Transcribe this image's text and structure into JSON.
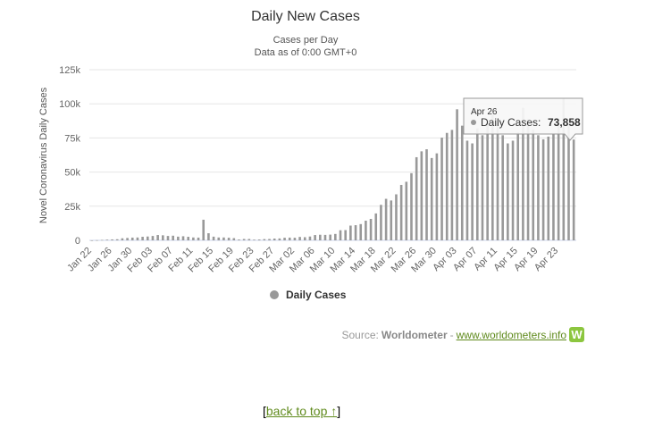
{
  "chart_data": {
    "type": "bar",
    "title": "Daily New Cases",
    "subtitle": [
      "Cases per Day",
      "Data as of 0:00 GMT+0"
    ],
    "ylabel": "Novel Coronavirus Daily Cases",
    "xlabel": "",
    "ylim": [
      0,
      125000
    ],
    "yticks": [
      0,
      25000,
      50000,
      75000,
      100000,
      125000
    ],
    "ytick_labels": [
      "0",
      "25k",
      "50k",
      "75k",
      "100k",
      "125k"
    ],
    "grid": true,
    "legend": {
      "position": "bottom-center",
      "entries": [
        "Daily Cases"
      ]
    },
    "series_color": "#999999",
    "categories": [
      "Jan 22",
      "Jan 23",
      "Jan 24",
      "Jan 25",
      "Jan 26",
      "Jan 27",
      "Jan 28",
      "Jan 29",
      "Jan 30",
      "Jan 31",
      "Feb 01",
      "Feb 02",
      "Feb 03",
      "Feb 04",
      "Feb 05",
      "Feb 06",
      "Feb 07",
      "Feb 08",
      "Feb 09",
      "Feb 10",
      "Feb 11",
      "Feb 12",
      "Feb 13",
      "Feb 14",
      "Feb 15",
      "Feb 16",
      "Feb 17",
      "Feb 18",
      "Feb 19",
      "Feb 20",
      "Feb 21",
      "Feb 22",
      "Feb 23",
      "Feb 24",
      "Feb 25",
      "Feb 26",
      "Feb 27",
      "Feb 28",
      "Feb 29",
      "Mar 01",
      "Mar 02",
      "Mar 03",
      "Mar 04",
      "Mar 05",
      "Mar 06",
      "Mar 07",
      "Mar 08",
      "Mar 09",
      "Mar 10",
      "Mar 11",
      "Mar 12",
      "Mar 13",
      "Mar 14",
      "Mar 15",
      "Mar 16",
      "Mar 17",
      "Mar 18",
      "Mar 19",
      "Mar 20",
      "Mar 21",
      "Mar 22",
      "Mar 23",
      "Mar 24",
      "Mar 25",
      "Mar 26",
      "Mar 27",
      "Mar 28",
      "Mar 29",
      "Mar 30",
      "Mar 31",
      "Apr 01",
      "Apr 02",
      "Apr 03",
      "Apr 04",
      "Apr 05",
      "Apr 06",
      "Apr 07",
      "Apr 08",
      "Apr 09",
      "Apr 10",
      "Apr 11",
      "Apr 12",
      "Apr 13",
      "Apr 14",
      "Apr 15",
      "Apr 16",
      "Apr 17",
      "Apr 18",
      "Apr 19",
      "Apr 20",
      "Apr 21",
      "Apr 22",
      "Apr 23",
      "Apr 24",
      "Apr 25",
      "Apr 26"
    ],
    "x_tick_labels": [
      "Jan 22",
      "Jan 26",
      "Jan 30",
      "Feb 03",
      "Feb 07",
      "Feb 11",
      "Feb 15",
      "Feb 19",
      "Feb 23",
      "Feb 27",
      "Mar 02",
      "Mar 06",
      "Mar 10",
      "Mar 14",
      "Mar 18",
      "Mar 22",
      "Mar 26",
      "Mar 30",
      "Apr 03",
      "Apr 07",
      "Apr 11",
      "Apr 15",
      "Apr 19",
      "Apr 23"
    ],
    "series": [
      {
        "name": "Daily Cases",
        "values": [
          0,
          100,
          290,
          500,
          680,
          800,
          1500,
          1750,
          2000,
          2100,
          2600,
          2800,
          3200,
          3900,
          3700,
          3200,
          3400,
          2700,
          3000,
          2600,
          2100,
          2000,
          15100,
          5200,
          2700,
          2100,
          2100,
          1900,
          1600,
          600,
          1000,
          1000,
          500,
          600,
          900,
          1000,
          1300,
          1400,
          1900,
          2000,
          1900,
          2500,
          2300,
          2800,
          3900,
          4100,
          4000,
          4200,
          4700,
          7400,
          7500,
          10800,
          11100,
          11900,
          14400,
          15700,
          19700,
          26000,
          30400,
          29200,
          33700,
          40600,
          42900,
          49200,
          60900,
          65200,
          66700,
          60300,
          63700,
          75200,
          78700,
          80900,
          96000,
          84000,
          73000,
          71000,
          82000,
          77000,
          86000,
          92000,
          86000,
          77000,
          71000,
          73000,
          79000,
          97000,
          89000,
          81000,
          77000,
          74000,
          76000,
          78000,
          84000,
          104000,
          85000,
          73858
        ]
      }
    ],
    "tooltip": {
      "date": "Apr 26",
      "label": "Daily Cases:",
      "value": "73,858"
    }
  },
  "footer": {
    "source_prefix": "Source:",
    "source_name": "Worldometer",
    "separator": "-",
    "source_link": "www.worldometers.info",
    "logo_letter": "W",
    "back_open": "[",
    "back_link": "back to top ↑",
    "back_close": "]"
  }
}
